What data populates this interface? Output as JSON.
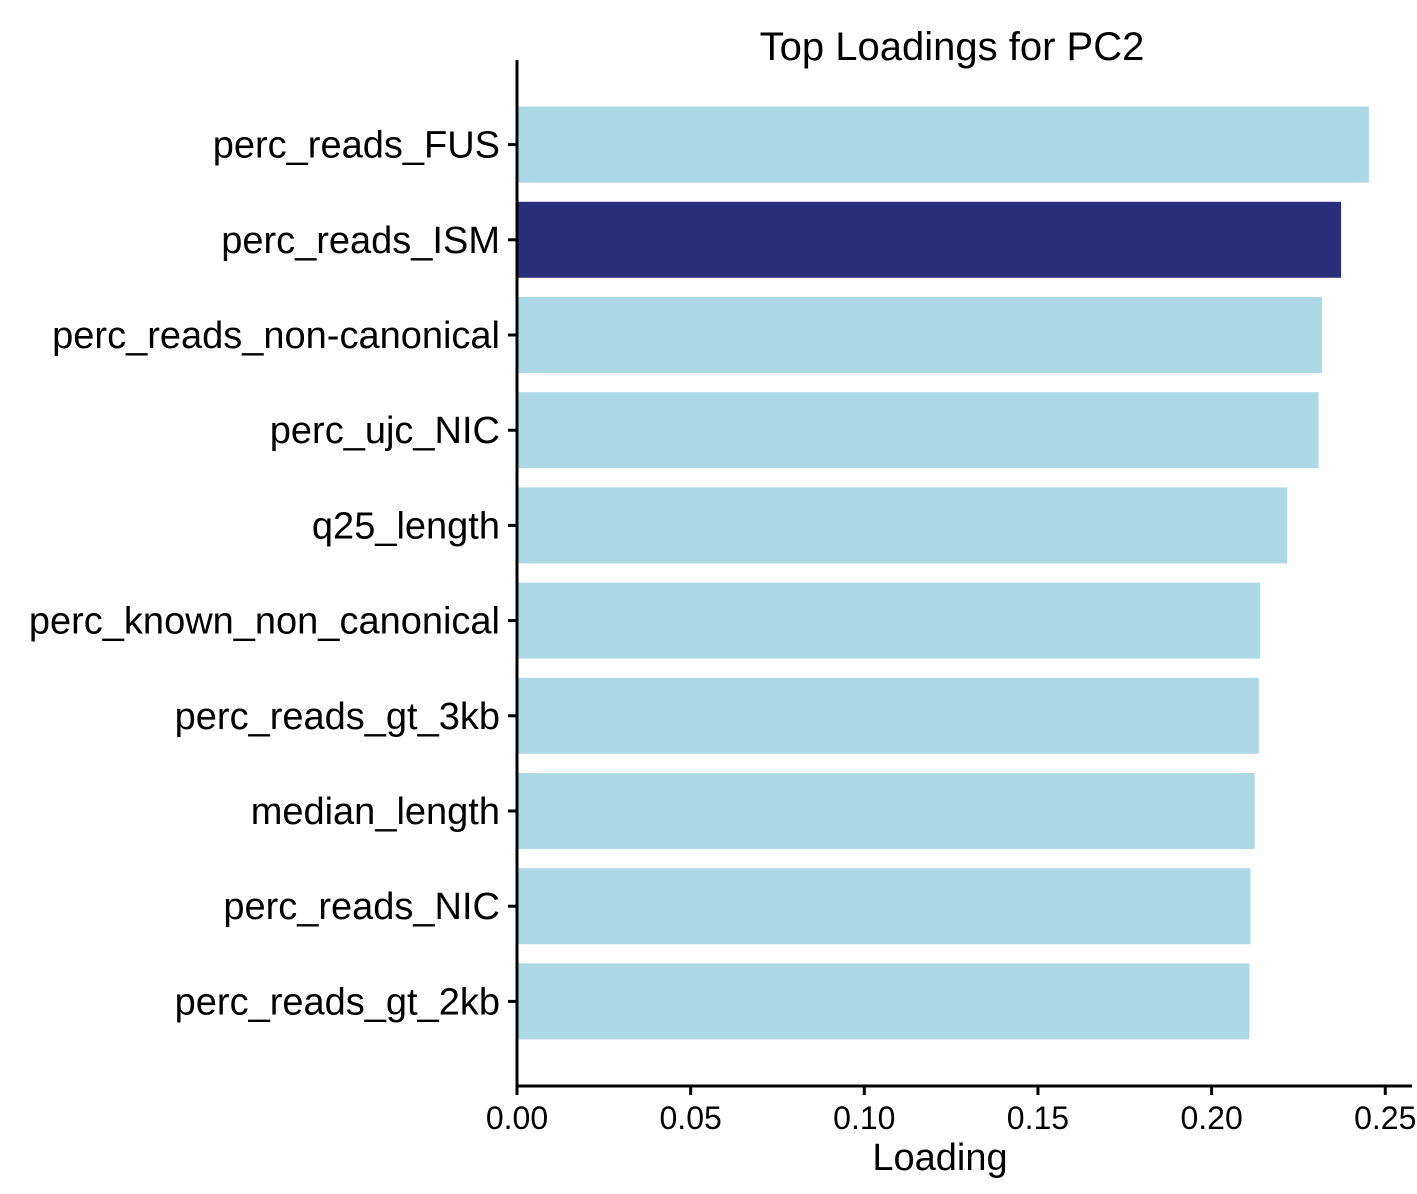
{
  "chart_data": {
    "type": "bar",
    "orientation": "horizontal",
    "title": "Top Loadings for PC2",
    "xlabel": "Loading",
    "ylabel": "",
    "xlim": [
      0,
      0.258
    ],
    "xticks": [
      "0.00",
      "0.05",
      "0.10",
      "0.15",
      "0.20",
      "0.25"
    ],
    "grid": false,
    "categories": [
      "perc_reads_FUS",
      "perc_reads_ISM",
      "perc_reads_non-canonical",
      "perc_ujc_NIC",
      "q25_length",
      "perc_known_non_canonical",
      "perc_reads_gt_3kb",
      "median_length",
      "perc_reads_NIC",
      "perc_reads_gt_2kb"
    ],
    "values": [
      0.245,
      0.237,
      0.2315,
      0.2305,
      0.2215,
      0.2137,
      0.2133,
      0.2121,
      0.2109,
      0.2106
    ],
    "highlight_index": 1,
    "colors": {
      "bar": "#add8e6",
      "highlight": "#2a2f7c",
      "axis": "#000000"
    }
  }
}
